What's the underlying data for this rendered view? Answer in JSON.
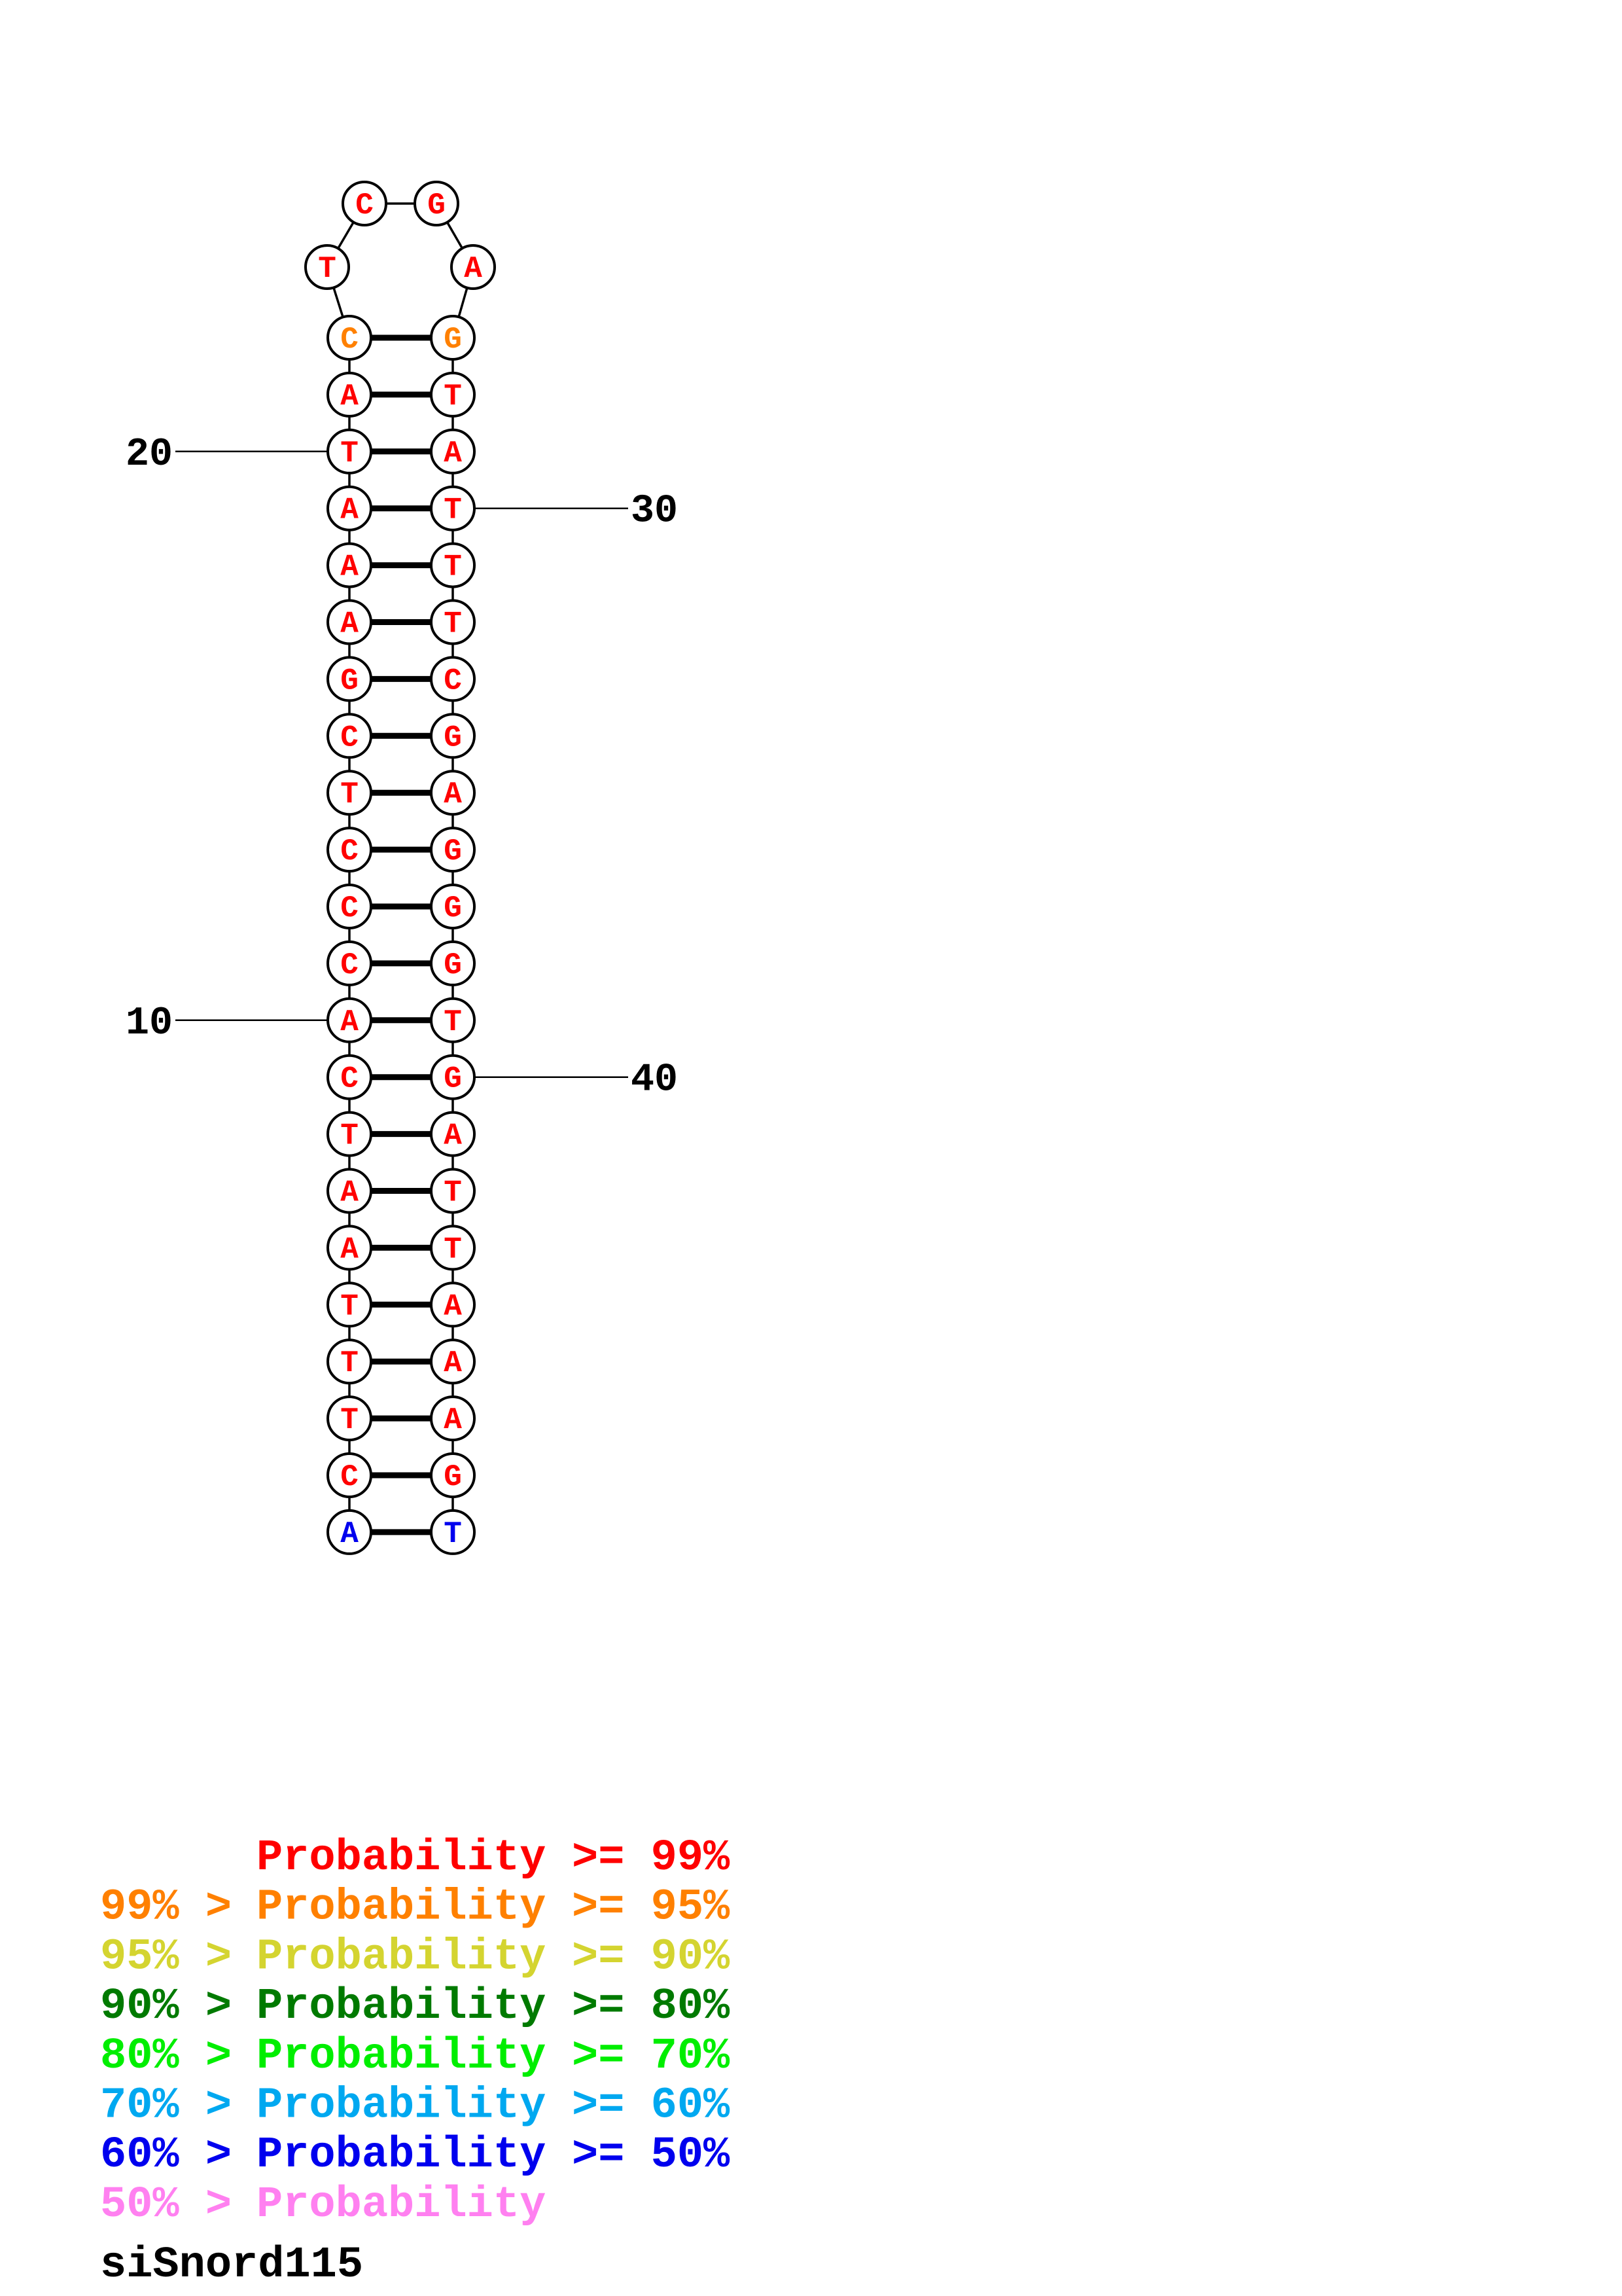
{
  "title": "siSnord115",
  "probability_colors": {
    "p99": "#ff0000",
    "p95": "#ff8000",
    "p90": "#d4d430",
    "p80": "#007a00",
    "p70": "#00ee00",
    "p60": "#00a8f0",
    "p50": "#0000ee",
    "plow": "#ff80f0"
  },
  "structure": {
    "sequence": "ACTTTAATCACCCTCGAAATACTCGAGTATTTCGAGGGTGATTAAAGT",
    "dot_bracket": "((((((((((((((((((((((....))))))))))))))))))))))",
    "base_probability_class": [
      "p50",
      "p99",
      "p99",
      "p99",
      "p99",
      "p99",
      "p99",
      "p99",
      "p99",
      "p99",
      "p99",
      "p99",
      "p99",
      "p99",
      "p99",
      "p99",
      "p99",
      "p99",
      "p99",
      "p99",
      "p99",
      "p95",
      "p99",
      "p99",
      "p99",
      "p99",
      "p95",
      "p99",
      "p99",
      "p99",
      "p99",
      "p99",
      "p99",
      "p99",
      "p99",
      "p99",
      "p99",
      "p99",
      "p99",
      "p99",
      "p99",
      "p99",
      "p99",
      "p99",
      "p99",
      "p99",
      "p99",
      "p50"
    ],
    "position_labels": [
      {
        "text": "10",
        "position": 10
      },
      {
        "text": "20",
        "position": 20
      },
      {
        "text": "30",
        "position": 30
      },
      {
        "text": "40",
        "position": 40
      }
    ]
  },
  "legend": [
    {
      "prefix": "",
      "label": "Probability",
      "suffix": ">= 99%",
      "class": "p99"
    },
    {
      "prefix": "99% >",
      "label": "Probability",
      "suffix": ">= 95%",
      "class": "p95"
    },
    {
      "prefix": "95% >",
      "label": "Probability",
      "suffix": ">= 90%",
      "class": "p90"
    },
    {
      "prefix": "90% >",
      "label": "Probability",
      "suffix": ">= 80%",
      "class": "p80"
    },
    {
      "prefix": "80% >",
      "label": "Probability",
      "suffix": ">= 70%",
      "class": "p70"
    },
    {
      "prefix": "70% >",
      "label": "Probability",
      "suffix": ">= 60%",
      "class": "p60"
    },
    {
      "prefix": "60% >",
      "label": "Probability",
      "suffix": ">= 50%",
      "class": "p50"
    },
    {
      "prefix": "50% >",
      "label": "Probability",
      "suffix": "",
      "class": "plow"
    }
  ]
}
